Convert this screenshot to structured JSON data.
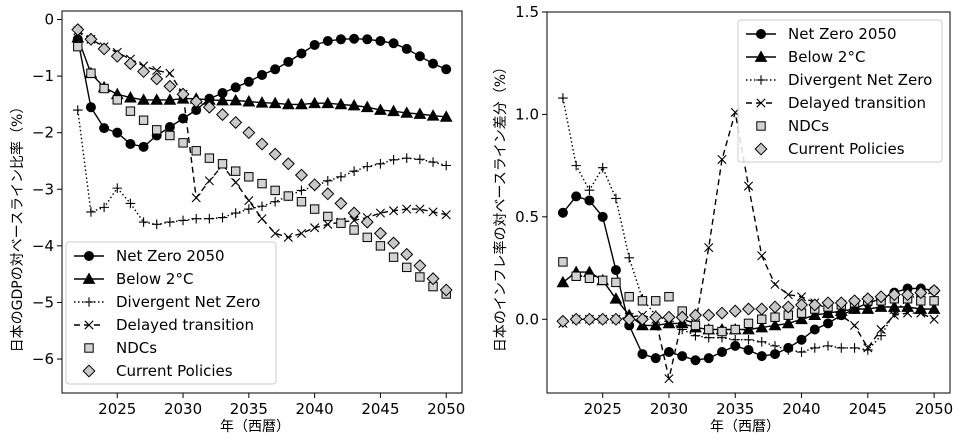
{
  "chart_data": [
    {
      "type": "line",
      "xlabel": "年（西暦）",
      "ylabel": "日本のGDPの対ベースライン比率（%）",
      "xlim": [
        2020.8,
        2051.2
      ],
      "ylim": [
        -6.6,
        0.15
      ],
      "xticks": [
        2025,
        2030,
        2035,
        2040,
        2045,
        2050
      ],
      "yticks": [
        0,
        -1,
        -2,
        -3,
        -4,
        -5,
        -6
      ],
      "grid": false,
      "legend_position": "lower-left",
      "x": [
        2022,
        2023,
        2024,
        2025,
        2026,
        2027,
        2028,
        2029,
        2030,
        2031,
        2032,
        2033,
        2034,
        2035,
        2036,
        2037,
        2038,
        2039,
        2040,
        2041,
        2042,
        2043,
        2044,
        2045,
        2046,
        2047,
        2048,
        2049,
        2050
      ],
      "series": [
        {
          "name": "Net Zero 2050",
          "marker": "circle",
          "dash": "solid",
          "fill": "#000000",
          "values": [
            -0.35,
            -1.55,
            -1.92,
            -2.0,
            -2.2,
            -2.25,
            -2.05,
            -1.9,
            -1.75,
            -1.6,
            -1.4,
            -1.3,
            -1.2,
            -1.1,
            -0.98,
            -0.88,
            -0.75,
            -0.6,
            -0.45,
            -0.38,
            -0.35,
            -0.34,
            -0.35,
            -0.38,
            -0.42,
            -0.52,
            -0.65,
            -0.78,
            -0.88
          ]
        },
        {
          "name": "Below 2°C",
          "marker": "triangle",
          "dash": "solid",
          "fill": "#000000",
          "values": [
            -0.32,
            -0.95,
            -1.2,
            -1.32,
            -1.38,
            -1.42,
            -1.42,
            -1.42,
            -1.4,
            -1.4,
            -1.42,
            -1.43,
            -1.43,
            -1.45,
            -1.47,
            -1.48,
            -1.5,
            -1.5,
            -1.48,
            -1.48,
            -1.5,
            -1.52,
            -1.55,
            -1.6,
            -1.62,
            -1.65,
            -1.67,
            -1.7,
            -1.72
          ]
        },
        {
          "name": "Divergent Net Zero",
          "marker": "plus",
          "dash": "dotted",
          "fill": "#000000",
          "values": [
            -1.6,
            -3.4,
            -3.32,
            -2.98,
            -3.25,
            -3.58,
            -3.62,
            -3.58,
            -3.55,
            -3.52,
            -3.52,
            -3.5,
            -3.42,
            -3.35,
            -3.3,
            -3.22,
            -3.12,
            -3.02,
            -2.95,
            -2.85,
            -2.78,
            -2.68,
            -2.6,
            -2.55,
            -2.48,
            -2.45,
            -2.47,
            -2.52,
            -2.58
          ]
        },
        {
          "name": "Delayed transition",
          "marker": "x",
          "dash": "dashed",
          "fill": "#000000",
          "values": [
            -0.2,
            -0.35,
            -0.48,
            -0.58,
            -0.7,
            -0.82,
            -0.9,
            -0.95,
            -1.32,
            -3.15,
            -2.85,
            -2.58,
            -2.88,
            -3.2,
            -3.52,
            -3.78,
            -3.85,
            -3.78,
            -3.68,
            -3.62,
            -3.58,
            -3.55,
            -3.5,
            -3.42,
            -3.38,
            -3.35,
            -3.35,
            -3.4,
            -3.45
          ]
        },
        {
          "name": "NDCs",
          "marker": "square",
          "dash": "none",
          "fill": "#d3d3d3",
          "values": [
            -0.48,
            -0.95,
            -1.22,
            -1.42,
            -1.62,
            -1.78,
            -1.95,
            -2.05,
            -2.18,
            -2.32,
            -2.45,
            -2.55,
            -2.68,
            -2.78,
            -2.9,
            -3.02,
            -3.12,
            -3.22,
            -3.35,
            -3.48,
            -3.6,
            -3.72,
            -3.85,
            -4.0,
            -4.2,
            -4.38,
            -4.55,
            -4.72,
            -4.85
          ]
        },
        {
          "name": "Current Policies",
          "marker": "diamond",
          "dash": "none",
          "fill": "#c8c8c8",
          "values": [
            -0.18,
            -0.35,
            -0.52,
            -0.65,
            -0.78,
            -0.92,
            -1.05,
            -1.18,
            -1.32,
            -1.45,
            -1.55,
            -1.68,
            -1.82,
            -2.0,
            -2.2,
            -2.38,
            -2.55,
            -2.75,
            -2.92,
            -3.08,
            -3.25,
            -3.42,
            -3.58,
            -3.78,
            -3.95,
            -4.15,
            -4.35,
            -4.58,
            -4.78
          ]
        }
      ]
    },
    {
      "type": "line",
      "xlabel": "年（西暦）",
      "ylabel": "日本のインフレ率の対ベースライン差分（%）",
      "xlim": [
        2020.8,
        2051.2
      ],
      "ylim": [
        -0.36,
        1.5
      ],
      "xticks": [
        2025,
        2030,
        2035,
        2040,
        2045,
        2050
      ],
      "yticks": [
        1.5,
        1.0,
        0.5,
        0.0
      ],
      "ytick_labels": [
        "1.5",
        "1.0",
        "0.5",
        "0.0"
      ],
      "grid": false,
      "legend_position": "upper-right",
      "x": [
        2022,
        2023,
        2024,
        2025,
        2026,
        2027,
        2028,
        2029,
        2030,
        2031,
        2032,
        2033,
        2034,
        2035,
        2036,
        2037,
        2038,
        2039,
        2040,
        2041,
        2042,
        2043,
        2044,
        2045,
        2046,
        2047,
        2048,
        2049,
        2050
      ],
      "series": [
        {
          "name": "Net Zero 2050",
          "marker": "circle",
          "dash": "solid",
          "fill": "#000000",
          "values": [
            0.52,
            0.6,
            0.58,
            0.5,
            0.24,
            -0.03,
            -0.17,
            -0.19,
            -0.16,
            -0.18,
            -0.2,
            -0.19,
            -0.16,
            -0.13,
            -0.15,
            -0.18,
            -0.17,
            -0.14,
            -0.1,
            -0.05,
            -0.02,
            0.02,
            0.05,
            0.08,
            0.1,
            0.13,
            0.15,
            0.15,
            0.14
          ]
        },
        {
          "name": "Below 2°C",
          "marker": "triangle",
          "dash": "solid",
          "fill": "#000000",
          "values": [
            0.18,
            0.23,
            0.23,
            0.19,
            0.1,
            0.02,
            -0.03,
            -0.03,
            -0.02,
            -0.02,
            -0.04,
            -0.05,
            -0.05,
            -0.05,
            -0.05,
            -0.04,
            -0.03,
            -0.02,
            0.0,
            0.02,
            0.03,
            0.04,
            0.05,
            0.05,
            0.06,
            0.06,
            0.06,
            0.05,
            0.05
          ]
        },
        {
          "name": "Divergent Net Zero",
          "marker": "plus",
          "dash": "dotted",
          "fill": "#000000",
          "values": [
            1.08,
            0.75,
            0.63,
            0.74,
            0.59,
            0.3,
            0.1,
            0.02,
            -0.01,
            -0.05,
            -0.08,
            -0.09,
            -0.09,
            -0.1,
            -0.1,
            -0.11,
            -0.13,
            -0.15,
            -0.16,
            -0.14,
            -0.13,
            -0.14,
            -0.14,
            -0.15,
            -0.08,
            0.03,
            0.1,
            0.12,
            0.13
          ]
        },
        {
          "name": "Delayed transition",
          "marker": "x",
          "dash": "dashed",
          "fill": "#000000",
          "values": [
            -0.02,
            0.0,
            0.0,
            0.0,
            0.0,
            0.01,
            0.02,
            0.0,
            -0.29,
            0.0,
            -0.02,
            0.35,
            0.78,
            1.01,
            0.65,
            0.31,
            0.17,
            0.12,
            0.11,
            0.08,
            0.05,
            0.02,
            -0.03,
            -0.14,
            -0.05,
            0.02,
            0.03,
            0.03,
            0.0
          ]
        },
        {
          "name": "NDCs",
          "marker": "square",
          "dash": "none",
          "fill": "#d3d3d3",
          "values": [
            0.28,
            0.21,
            0.2,
            0.19,
            0.18,
            0.11,
            0.09,
            0.09,
            0.11,
            0.04,
            -0.03,
            -0.05,
            -0.06,
            -0.05,
            -0.02,
            0.0,
            0.01,
            0.02,
            0.03,
            0.05,
            0.06,
            0.07,
            0.08,
            0.09,
            0.09,
            0.1,
            0.1,
            0.09,
            0.09
          ]
        },
        {
          "name": "Current Policies",
          "marker": "diamond",
          "dash": "none",
          "fill": "#c8c8c8",
          "values": [
            -0.01,
            0.0,
            0.0,
            0.0,
            0.0,
            0.0,
            0.0,
            0.01,
            0.01,
            0.01,
            0.02,
            0.02,
            0.03,
            0.04,
            0.05,
            0.05,
            0.06,
            0.06,
            0.07,
            0.07,
            0.08,
            0.08,
            0.09,
            0.1,
            0.11,
            0.12,
            0.12,
            0.13,
            0.14
          ]
        }
      ]
    }
  ]
}
